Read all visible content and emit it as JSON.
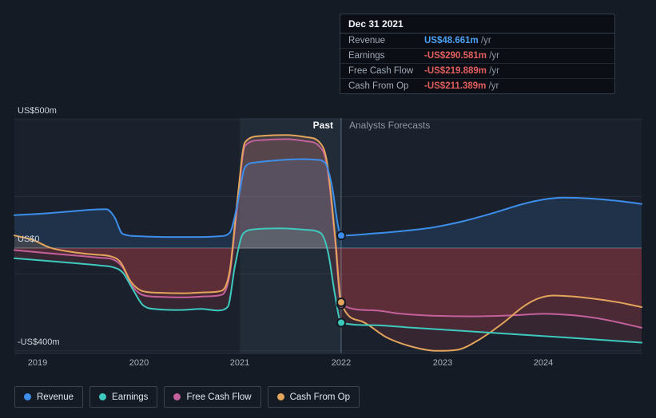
{
  "tooltip": {
    "date": "Dec 31 2021",
    "rows": [
      {
        "label": "Revenue",
        "value": "US$48.661m",
        "suffix": " /yr",
        "color": "#4ba0f4"
      },
      {
        "label": "Earnings",
        "value": "-US$290.581m",
        "suffix": " /yr",
        "color": "#e25e5e"
      },
      {
        "label": "Free Cash Flow",
        "value": "-US$219.889m",
        "suffix": " /yr",
        "color": "#e25e5e"
      },
      {
        "label": "Cash From Op",
        "value": "-US$211.389m",
        "suffix": " /yr",
        "color": "#e25e5e"
      }
    ]
  },
  "labels": {
    "past": "Past",
    "forecast": "Analysts Forecasts"
  },
  "legend": [
    {
      "label": "Revenue",
      "color": "#3d8eea"
    },
    {
      "label": "Earnings",
      "color": "#3ec9bf"
    },
    {
      "label": "Free Cash Flow",
      "color": "#c4619d"
    },
    {
      "label": "Cash From Op",
      "color": "#e3a45c"
    }
  ],
  "chart_data": {
    "type": "line",
    "title": "",
    "xlabel": "",
    "ylabel": "",
    "x_range": [
      2018.77,
      2024.97
    ],
    "y_range": [
      -410,
      506
    ],
    "x_ticks": [
      2019,
      2020,
      2021,
      2022,
      2023,
      2024
    ],
    "y_ticks": [
      {
        "value": 500,
        "label": "US$500m"
      },
      {
        "value": 0,
        "label": "US$0"
      },
      {
        "value": -400,
        "label": "-US$400m"
      }
    ],
    "grid_values": [
      500,
      200,
      -100,
      -400
    ],
    "divider_x": 2022,
    "highlight_band": [
      2021,
      2022
    ],
    "negative_fill": "#9d3a43",
    "plot_bg": "#1a212c",
    "series": [
      {
        "name": "Revenue",
        "color": "#3d8eea",
        "points": [
          [
            2018.77,
            128
          ],
          [
            2019.05,
            134
          ],
          [
            2019.3,
            142
          ],
          [
            2019.55,
            150
          ],
          [
            2019.68,
            151
          ],
          [
            2019.76,
            120
          ],
          [
            2019.84,
            55
          ],
          [
            2020.0,
            46
          ],
          [
            2020.3,
            43
          ],
          [
            2020.6,
            43
          ],
          [
            2020.8,
            46
          ],
          [
            2020.9,
            60
          ],
          [
            2020.97,
            160
          ],
          [
            2021.05,
            315
          ],
          [
            2021.15,
            333
          ],
          [
            2021.35,
            341
          ],
          [
            2021.6,
            346
          ],
          [
            2021.75,
            344
          ],
          [
            2021.84,
            332
          ],
          [
            2021.91,
            240
          ],
          [
            2021.97,
            85
          ],
          [
            2022.0,
            48.661
          ],
          [
            2022.3,
            56
          ],
          [
            2022.6,
            66
          ],
          [
            2022.9,
            80
          ],
          [
            2023.2,
            104
          ],
          [
            2023.5,
            136
          ],
          [
            2023.8,
            172
          ],
          [
            2024.0,
            189
          ],
          [
            2024.2,
            196
          ],
          [
            2024.45,
            193
          ],
          [
            2024.7,
            185
          ],
          [
            2024.97,
            172
          ]
        ]
      },
      {
        "name": "Earnings",
        "color": "#3ec9bf",
        "points": [
          [
            2018.77,
            -40
          ],
          [
            2019.1,
            -50
          ],
          [
            2019.4,
            -60
          ],
          [
            2019.62,
            -68
          ],
          [
            2019.74,
            -74
          ],
          [
            2019.84,
            -95
          ],
          [
            2019.94,
            -160
          ],
          [
            2020.04,
            -222
          ],
          [
            2020.18,
            -238
          ],
          [
            2020.4,
            -241
          ],
          [
            2020.62,
            -237
          ],
          [
            2020.78,
            -243
          ],
          [
            2020.88,
            -228
          ],
          [
            2020.95,
            -70
          ],
          [
            2021.03,
            55
          ],
          [
            2021.15,
            73
          ],
          [
            2021.4,
            77
          ],
          [
            2021.65,
            71
          ],
          [
            2021.8,
            58
          ],
          [
            2021.87,
            -15
          ],
          [
            2021.94,
            -185
          ],
          [
            2022.0,
            -290.581
          ],
          [
            2022.3,
            -300
          ],
          [
            2022.7,
            -310
          ],
          [
            2023.1,
            -320
          ],
          [
            2023.5,
            -330
          ],
          [
            2023.9,
            -340
          ],
          [
            2024.3,
            -350
          ],
          [
            2024.97,
            -368
          ]
        ]
      },
      {
        "name": "Free Cash Flow",
        "color": "#c4619d",
        "points": [
          [
            2018.77,
            -8
          ],
          [
            2019.1,
            -20
          ],
          [
            2019.4,
            -30
          ],
          [
            2019.62,
            -38
          ],
          [
            2019.74,
            -44
          ],
          [
            2019.84,
            -75
          ],
          [
            2019.94,
            -150
          ],
          [
            2020.04,
            -183
          ],
          [
            2020.2,
            -190
          ],
          [
            2020.45,
            -192
          ],
          [
            2020.68,
            -188
          ],
          [
            2020.82,
            -182
          ],
          [
            2020.9,
            -100
          ],
          [
            2020.97,
            150
          ],
          [
            2021.05,
            398
          ],
          [
            2021.2,
            420
          ],
          [
            2021.45,
            424
          ],
          [
            2021.65,
            416
          ],
          [
            2021.78,
            398
          ],
          [
            2021.86,
            320
          ],
          [
            2021.94,
            30
          ],
          [
            2022.0,
            -219.889
          ],
          [
            2022.3,
            -242
          ],
          [
            2022.6,
            -256
          ],
          [
            2022.9,
            -263
          ],
          [
            2023.3,
            -266
          ],
          [
            2023.7,
            -262
          ],
          [
            2024.0,
            -256
          ],
          [
            2024.3,
            -262
          ],
          [
            2024.6,
            -278
          ],
          [
            2024.97,
            -310
          ]
        ]
      },
      {
        "name": "Cash From Op",
        "color": "#e3a45c",
        "points": [
          [
            2018.77,
            49
          ],
          [
            2018.95,
            32
          ],
          [
            2019.12,
            2
          ],
          [
            2019.35,
            -16
          ],
          [
            2019.58,
            -26
          ],
          [
            2019.72,
            -32
          ],
          [
            2019.82,
            -55
          ],
          [
            2019.92,
            -130
          ],
          [
            2020.04,
            -168
          ],
          [
            2020.2,
            -174
          ],
          [
            2020.45,
            -176
          ],
          [
            2020.68,
            -172
          ],
          [
            2020.82,
            -166
          ],
          [
            2020.9,
            -85
          ],
          [
            2020.97,
            170
          ],
          [
            2021.05,
            412
          ],
          [
            2021.2,
            436
          ],
          [
            2021.45,
            440
          ],
          [
            2021.65,
            432
          ],
          [
            2021.78,
            414
          ],
          [
            2021.86,
            335
          ],
          [
            2021.94,
            45
          ],
          [
            2022.0,
            -211.389
          ],
          [
            2022.2,
            -285
          ],
          [
            2022.45,
            -348
          ],
          [
            2022.7,
            -384
          ],
          [
            2022.95,
            -400
          ],
          [
            2023.15,
            -396
          ],
          [
            2023.35,
            -360
          ],
          [
            2023.6,
            -292
          ],
          [
            2023.8,
            -228
          ],
          [
            2023.95,
            -196
          ],
          [
            2024.1,
            -185
          ],
          [
            2024.3,
            -189
          ],
          [
            2024.55,
            -200
          ],
          [
            2024.75,
            -212
          ],
          [
            2024.97,
            -230
          ]
        ]
      }
    ],
    "markers": [
      {
        "series": 2,
        "x": 2022,
        "value": -219.889
      },
      {
        "series": 3,
        "x": 2022,
        "value": -211.389
      },
      {
        "series": 1,
        "x": 2022,
        "value": -290.581
      },
      {
        "series": 0,
        "x": 2022,
        "value": 48.661
      }
    ]
  }
}
